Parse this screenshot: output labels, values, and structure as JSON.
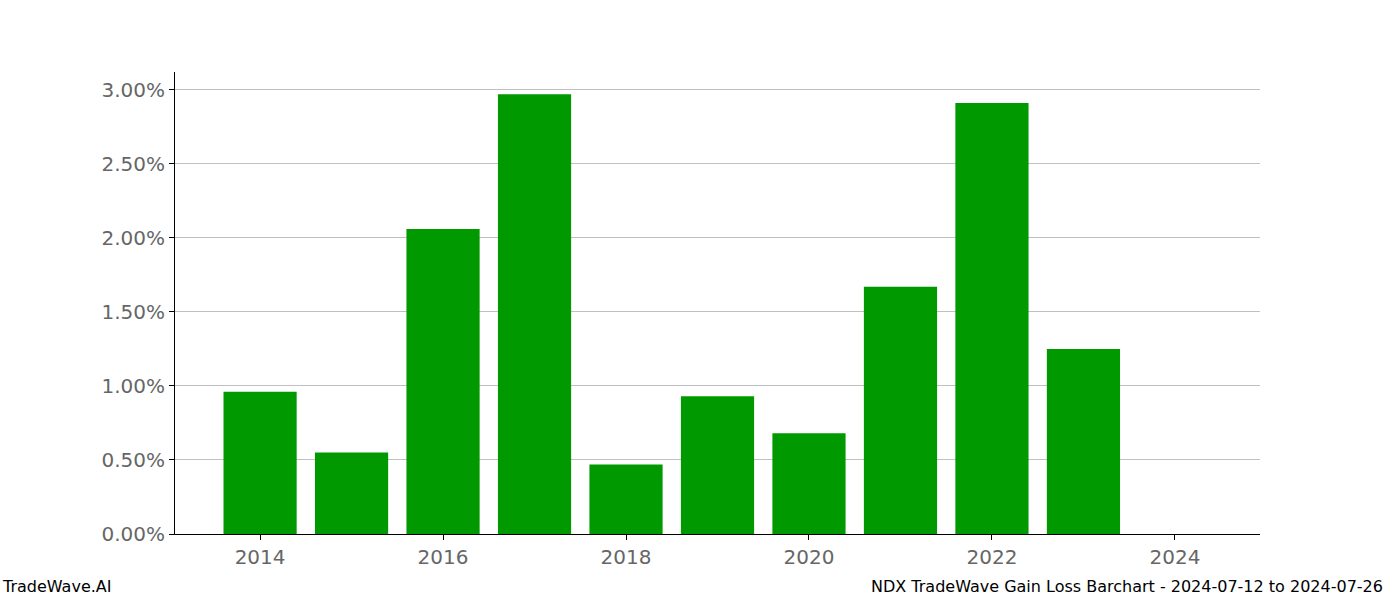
{
  "chart_data": {
    "type": "bar",
    "x": [
      2014,
      2015,
      2016,
      2017,
      2018,
      2019,
      2020,
      2021,
      2022,
      2023,
      2024
    ],
    "values": [
      0.96,
      0.55,
      2.06,
      2.97,
      0.47,
      0.93,
      0.68,
      1.67,
      2.91,
      1.25,
      null
    ],
    "color": "#009900",
    "xlim": [
      2013.07,
      2024.93
    ],
    "xticks": [
      2014,
      2016,
      2018,
      2020,
      2022,
      2024
    ],
    "ylim": [
      0,
      3.12
    ],
    "yticks": [
      {
        "value": 0,
        "label": "0.00%"
      },
      {
        "value": 0.5,
        "label": "0.50%"
      },
      {
        "value": 1,
        "label": "1.00%"
      },
      {
        "value": 1.5,
        "label": "1.50%"
      },
      {
        "value": 2,
        "label": "2.00%"
      },
      {
        "value": 2.5,
        "label": "2.50%"
      },
      {
        "value": 3,
        "label": "3.00%"
      }
    ],
    "grid": true,
    "annotations": [
      "TradeWave.AI",
      "NDX TradeWave Gain Loss Barchart - 2024-07-12 to 2024-07-26"
    ]
  }
}
